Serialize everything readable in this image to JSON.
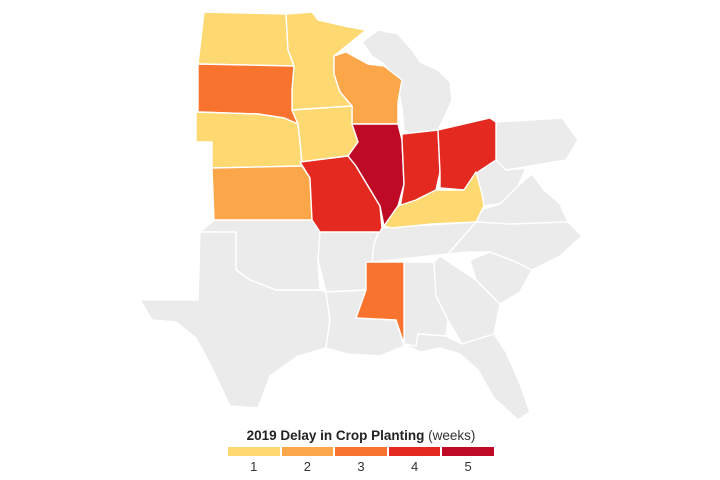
{
  "legend": {
    "title": "2019 Delay in Crop Planting",
    "unit": "(weeks)",
    "classes": [
      {
        "label": "1",
        "weeks": 1,
        "color": "#fed870"
      },
      {
        "label": "2",
        "weeks": 2,
        "color": "#fca64a"
      },
      {
        "label": "3",
        "weeks": 3,
        "color": "#f8742e"
      },
      {
        "label": "4",
        "weeks": 4,
        "color": "#e42a20"
      },
      {
        "label": "5",
        "weeks": 5,
        "color": "#bf0a26"
      }
    ],
    "no_data_color": "#ebebeb"
  },
  "states": [
    {
      "name": "North Dakota",
      "weeks": 1
    },
    {
      "name": "Minnesota",
      "weeks": 1
    },
    {
      "name": "South Dakota",
      "weeks": 3
    },
    {
      "name": "Wisconsin",
      "weeks": 2
    },
    {
      "name": "Nebraska",
      "weeks": 1
    },
    {
      "name": "Iowa",
      "weeks": 1
    },
    {
      "name": "Kansas",
      "weeks": 2
    },
    {
      "name": "Missouri",
      "weeks": 4
    },
    {
      "name": "Illinois",
      "weeks": 5
    },
    {
      "name": "Indiana",
      "weeks": 4
    },
    {
      "name": "Ohio",
      "weeks": 4
    },
    {
      "name": "Kentucky",
      "weeks": 1
    },
    {
      "name": "Mississippi",
      "weeks": 3
    },
    {
      "name": "Michigan",
      "weeks": null
    },
    {
      "name": "Oklahoma",
      "weeks": null
    },
    {
      "name": "Texas",
      "weeks": null
    },
    {
      "name": "Arkansas",
      "weeks": null
    },
    {
      "name": "Louisiana",
      "weeks": null
    },
    {
      "name": "Tennessee",
      "weeks": null
    },
    {
      "name": "Alabama",
      "weeks": null
    },
    {
      "name": "Georgia",
      "weeks": null
    },
    {
      "name": "Florida",
      "weeks": null
    },
    {
      "name": "South Carolina",
      "weeks": null
    },
    {
      "name": "North Carolina",
      "weeks": null
    },
    {
      "name": "Virginia",
      "weeks": null
    },
    {
      "name": "West Virginia",
      "weeks": null
    },
    {
      "name": "Pennsylvania",
      "weeks": null
    }
  ]
}
